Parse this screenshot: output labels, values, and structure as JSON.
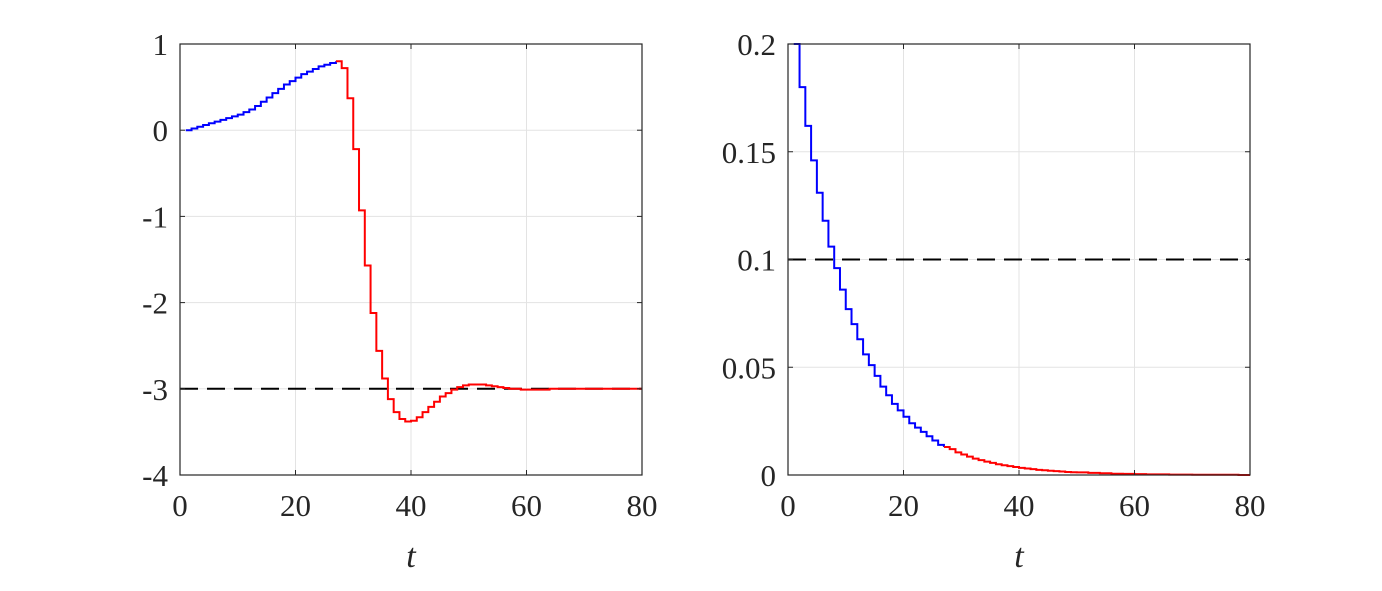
{
  "chart_data": [
    {
      "type": "line",
      "title": "",
      "xlabel": "t",
      "ylabel": "",
      "xlim": [
        0,
        80
      ],
      "ylim": [
        -4,
        1
      ],
      "xticks": [
        0,
        20,
        40,
        60,
        80
      ],
      "xtick_labels": [
        "0",
        "20",
        "40",
        "60",
        "80"
      ],
      "yticks": [
        -4,
        -3,
        -2,
        -1,
        0,
        1
      ],
      "ytick_labels": [
        "-4",
        "-3",
        "-2",
        "-1",
        "0",
        "1"
      ],
      "grid": true,
      "step": true,
      "colors": {
        "segment_1": "#0000ff",
        "segment_2": "#ff0000",
        "reference": "#000000"
      },
      "reference_line": {
        "y": -3,
        "style": "dashed"
      },
      "series": [
        {
          "color": "#0000ff",
          "x": [
            1,
            2,
            3,
            4,
            5,
            6,
            7,
            8,
            9,
            10,
            11,
            12,
            13,
            14,
            15,
            16,
            17,
            18,
            19,
            20,
            21,
            22,
            23,
            24,
            25,
            26,
            27
          ],
          "y": [
            0.0,
            0.02,
            0.04,
            0.06,
            0.08,
            0.1,
            0.12,
            0.14,
            0.16,
            0.18,
            0.21,
            0.24,
            0.28,
            0.33,
            0.38,
            0.43,
            0.48,
            0.53,
            0.57,
            0.61,
            0.65,
            0.68,
            0.71,
            0.74,
            0.76,
            0.78,
            0.8
          ]
        },
        {
          "color": "#ff0000",
          "x": [
            27,
            28,
            29,
            30,
            31,
            32,
            33,
            34,
            35,
            36,
            37,
            38,
            39,
            40,
            41,
            42,
            43,
            44,
            45,
            46,
            47,
            48,
            49,
            50,
            51,
            52,
            53,
            54,
            55,
            56,
            57,
            58,
            59,
            60,
            62,
            64,
            66,
            68,
            70,
            72,
            74,
            76,
            78,
            79
          ],
          "y": [
            0.8,
            0.72,
            0.37,
            -0.22,
            -0.93,
            -1.57,
            -2.12,
            -2.56,
            -2.88,
            -3.12,
            -3.27,
            -3.35,
            -3.38,
            -3.37,
            -3.33,
            -3.27,
            -3.21,
            -3.15,
            -3.09,
            -3.05,
            -3.01,
            -2.98,
            -2.96,
            -2.95,
            -2.95,
            -2.95,
            -2.96,
            -2.97,
            -2.98,
            -2.99,
            -3.0,
            -3.0,
            -3.01,
            -3.01,
            -3.01,
            -3.0,
            -3.0,
            -3.0,
            -3.0,
            -3.0,
            -3.0,
            -3.0,
            -3.0,
            -3.0
          ]
        }
      ]
    },
    {
      "type": "line",
      "title": "",
      "xlabel": "t",
      "ylabel": "",
      "xlim": [
        0,
        80
      ],
      "ylim": [
        0,
        0.2
      ],
      "xticks": [
        0,
        20,
        40,
        60,
        80
      ],
      "xtick_labels": [
        "0",
        "20",
        "40",
        "60",
        "80"
      ],
      "yticks": [
        0,
        0.05,
        0.1,
        0.15,
        0.2
      ],
      "ytick_labels": [
        "0",
        "0.05",
        "0.1",
        "0.15",
        "0.2"
      ],
      "grid": true,
      "step": true,
      "colors": {
        "segment_1": "#0000ff",
        "segment_2": "#ff0000",
        "reference": "#000000"
      },
      "reference_line": {
        "y": 0.1,
        "style": "dashed"
      },
      "series": [
        {
          "color": "#0000ff",
          "x": [
            1,
            2,
            3,
            4,
            5,
            6,
            7,
            8,
            9,
            10,
            11,
            12,
            13,
            14,
            15,
            16,
            17,
            18,
            19,
            20,
            21,
            22,
            23,
            24,
            25,
            26,
            27
          ],
          "y": [
            0.2,
            0.18,
            0.162,
            0.146,
            0.131,
            0.118,
            0.106,
            0.096,
            0.086,
            0.077,
            0.07,
            0.063,
            0.056,
            0.051,
            0.046,
            0.041,
            0.037,
            0.033,
            0.03,
            0.027,
            0.024,
            0.022,
            0.02,
            0.018,
            0.016,
            0.014,
            0.013
          ]
        },
        {
          "color": "#ff0000",
          "x": [
            27,
            28,
            29,
            30,
            31,
            32,
            33,
            34,
            35,
            36,
            37,
            38,
            39,
            40,
            41,
            42,
            43,
            44,
            45,
            46,
            47,
            48,
            49,
            50,
            52,
            54,
            56,
            58,
            60,
            62,
            64,
            66,
            68,
            70,
            72,
            74,
            76,
            78,
            79
          ],
          "y": [
            0.013,
            0.012,
            0.0105,
            0.0095,
            0.0085,
            0.0076,
            0.0069,
            0.0062,
            0.0056,
            0.005,
            0.0045,
            0.0041,
            0.0037,
            0.0033,
            0.003,
            0.0027,
            0.0024,
            0.0022,
            0.002,
            0.0018,
            0.0016,
            0.0014,
            0.0013,
            0.0012,
            0.001,
            0.0008,
            0.0006,
            0.0005,
            0.0004,
            0.0003,
            0.0003,
            0.0002,
            0.0002,
            0.0001,
            0.0001,
            0.0001,
            0.0001,
            0.0,
            0.0
          ]
        }
      ]
    }
  ]
}
